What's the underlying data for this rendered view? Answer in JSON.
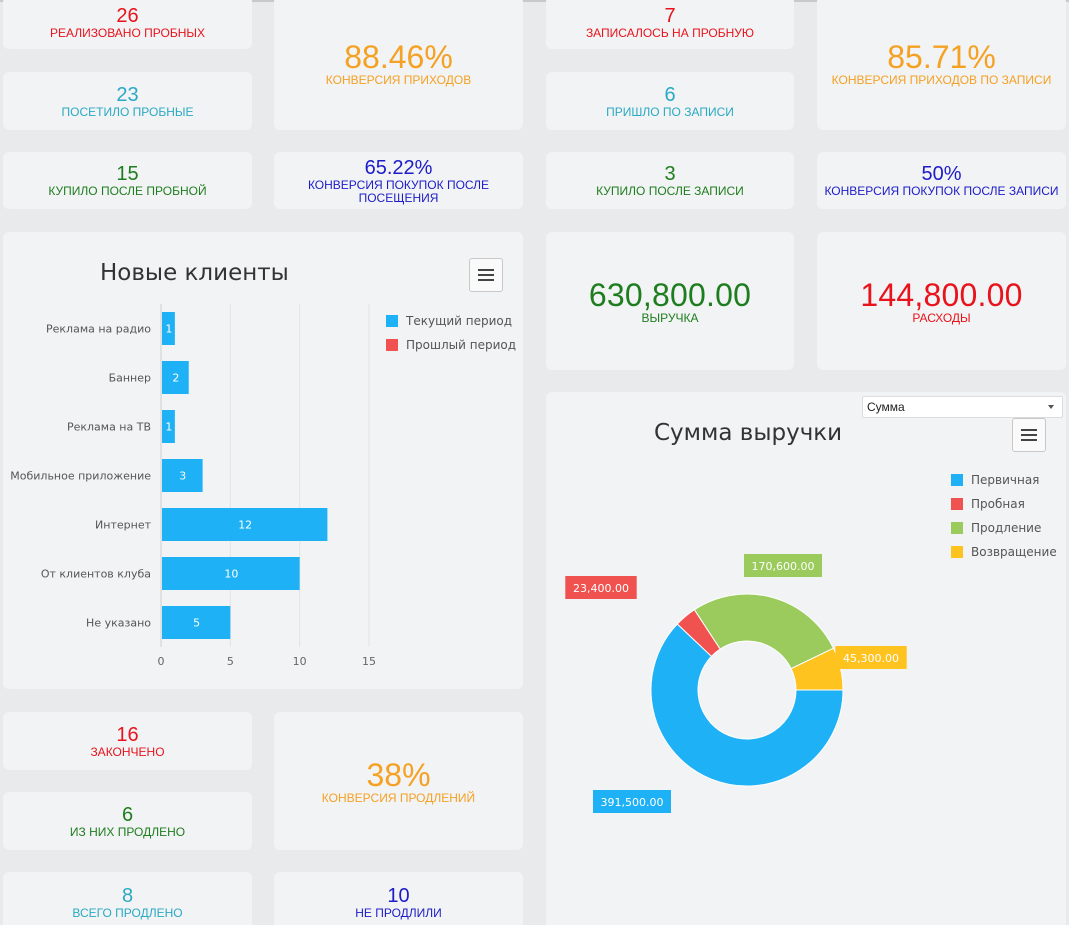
{
  "stats": {
    "realized_trials": {
      "value": "26",
      "label": "РЕАЛИЗОВАНО ПРОБНЫХ"
    },
    "visited_trials": {
      "value": "23",
      "label": "ПОСЕТИЛО ПРОБНЫЕ"
    },
    "visit_conversion": {
      "value": "88.46%",
      "label": "КОНВЕРСИЯ ПРИХОДОВ"
    },
    "bought_after_trial": {
      "value": "15",
      "label": "КУПИЛО ПОСЛЕ ПРОБНОЙ"
    },
    "purchase_conversion_after_visit": {
      "value": "65.22%",
      "label": "КОНВЕРСИЯ ПОКУПОК ПОСЛЕ ПОСЕЩЕНИЯ"
    },
    "signed_up_trial": {
      "value": "7",
      "label": "ЗАПИСАЛОСЬ НА ПРОБНУЮ"
    },
    "came_by_signup": {
      "value": "6",
      "label": "ПРИШЛО ПО ЗАПИСИ"
    },
    "visit_conversion_by_signup": {
      "value": "85.71%",
      "label": "КОНВЕРСИЯ ПРИХОДОВ ПО ЗАПИСИ"
    },
    "bought_after_signup": {
      "value": "3",
      "label": "КУПИЛО ПОСЛЕ ЗАПИСИ"
    },
    "purchase_conversion_after_signup": {
      "value": "50%",
      "label": "КОНВЕРСИЯ ПОКУПОК ПОСЛЕ ЗАПИСИ"
    },
    "revenue": {
      "value": "630,800.00",
      "label": "ВЫРУЧКА"
    },
    "expenses": {
      "value": "144,800.00",
      "label": "РАСХОДЫ"
    },
    "finished": {
      "value": "16",
      "label": "ЗАКОНЧЕНО"
    },
    "of_them_extended": {
      "value": "6",
      "label": "ИЗ НИХ ПРОДЛЕНО"
    },
    "extension_conversion": {
      "value": "38%",
      "label": "КОНВЕРСИЯ ПРОДЛЕНИЙ"
    },
    "total_extended": {
      "value": "8",
      "label": "ВСЕГО ПРОДЛЕНО"
    },
    "not_extended": {
      "value": "10",
      "label": "НЕ ПРОДЛИЛИ"
    }
  },
  "revenue_select": {
    "value": "Сумма"
  },
  "colors": {
    "red": "#e8131c",
    "teal": "#2aa9c4",
    "green": "#1e7d1e",
    "orange": "#f4a124",
    "blue": "#1c1cc8",
    "series_blue": "#1eb1f5",
    "series_red": "#f0534f",
    "series_green": "#9acb5c",
    "series_yellow": "#ffc31f"
  },
  "icons": {
    "chart_menu": "hamburger-menu-icon",
    "select_caret": "caret-down-icon"
  },
  "chart_data": [
    {
      "type": "bar",
      "orientation": "horizontal",
      "title": "Новые клиенты",
      "categories": [
        "Реклама на радио",
        "Баннер",
        "Реклама на ТВ",
        "Мобильное приложение",
        "Интернет",
        "От клиентов клуба",
        "Не указано"
      ],
      "series": [
        {
          "name": "Текущий период",
          "color": "#1eb1f5",
          "values": [
            1,
            2,
            1,
            3,
            12,
            10,
            5
          ]
        },
        {
          "name": "Прошлый период",
          "color": "#f0534f",
          "values": [
            0,
            0,
            0,
            0,
            0,
            0,
            0
          ]
        }
      ],
      "xlim": [
        0,
        15
      ],
      "xticks": [
        "0",
        "5",
        "10",
        "15"
      ],
      "grid": true,
      "legend": "top-right"
    },
    {
      "type": "pie",
      "donut": true,
      "title": "Сумма выручки",
      "labels": [
        "Первичная",
        "Пробная",
        "Продление",
        "Возвращение"
      ],
      "values": [
        391500,
        23400,
        170600,
        45300
      ],
      "value_labels": [
        "391,500.00",
        "23,400.00",
        "170,600.00",
        "45,300.00"
      ],
      "colors": [
        "#1eb1f5",
        "#f0534f",
        "#9acb5c",
        "#ffc31f"
      ],
      "legend": "top-right"
    }
  ]
}
